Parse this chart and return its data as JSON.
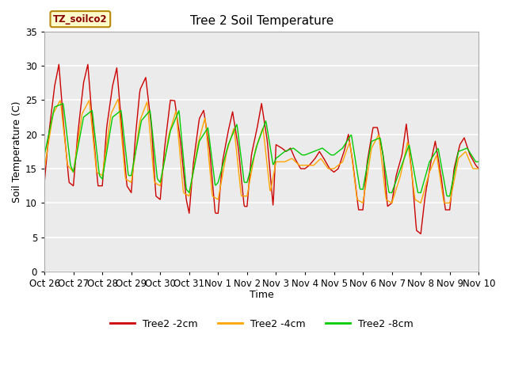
{
  "title": "Tree 2 Soil Temperature",
  "xlabel": "Time",
  "ylabel": "Soil Temperature (C)",
  "annotation": "TZ_soilco2",
  "ylim": [
    0,
    35
  ],
  "legend": [
    "Tree2 -2cm",
    "Tree2 -4cm",
    "Tree2 -8cm"
  ],
  "colors": {
    "2cm": "#CC0000",
    "4cm": "#FFA500",
    "8cm": "#00CC00"
  },
  "xtick_labels": [
    "Oct 26",
    "Oct 27",
    "Oct 28",
    "Oct 29",
    "Oct 30",
    "Oct 31",
    "Nov 1",
    "Nov 2",
    "Nov 3",
    "Nov 4",
    "Nov 5",
    "Nov 6",
    "Nov 7",
    "Nov 8",
    "Nov 9",
    "Nov 10"
  ],
  "plot_bg": "#EBEBEB",
  "grid_color": "#FFFFFF",
  "title_fontsize": 11,
  "axis_fontsize": 9,
  "tick_fontsize": 8
}
